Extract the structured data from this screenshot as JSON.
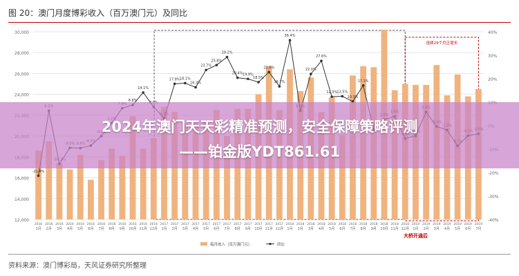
{
  "figure_title": "图 20：澳门月度博彩收入（百万澳门元）及同比",
  "overlay": {
    "line1": "2024年澳门天天彩精准预测，安全保障策略评测",
    "line2": "——铂金版YDT861.61"
  },
  "source": "资料来源：澳门博彩局，天风证券研究所整理",
  "annotation_box_label": "连续29个月正增长",
  "annotation_bottom_label": "大桥开通后",
  "colors": {
    "bar": "#f0b37e",
    "line": "#333333",
    "accent": "#c00000",
    "grid": "#e6e6e6"
  },
  "chart_data": {
    "type": "bar",
    "title": "",
    "ylim": [
      12000,
      30000
    ],
    "y2lim": [
      -40,
      40
    ],
    "yticks": [
      "30,000",
      "28,000",
      "26,000",
      "24,000",
      "22,000",
      "20,000",
      "18,000",
      "16,000",
      "14,000",
      "12,000"
    ],
    "y2ticks": [
      "40%",
      "30%",
      "20%",
      "10%",
      "0%",
      "-10%",
      "-20%",
      "-30%",
      "-40%"
    ],
    "categories": [
      "2016 1月",
      "2016 2月",
      "2016 3月",
      "2016 4月",
      "2016 5月",
      "2016 6月",
      "2016 7月",
      "2016 8月",
      "2016 9月",
      "2016 10月",
      "2016 11月",
      "2016 12月",
      "2017 1月",
      "2017 2月",
      "2017 3月",
      "2017 4月",
      "2017 5月",
      "2017 6月",
      "2017 7月",
      "2017 8月",
      "2017 9月",
      "2017 10月",
      "2017 11月",
      "2017 12月",
      "2018 1月",
      "2018 2月",
      "2018 3月",
      "2018 4月",
      "2018 5月",
      "2018 6月",
      "2018 7月",
      "2018 8月",
      "2018 9月",
      "2018 10月",
      "2018 11月",
      "2018 12月",
      "2019 1月",
      "2019 2月",
      "2019 3月",
      "2019 4月",
      "2019 5月",
      "2019 6月",
      "2019 7月"
    ],
    "xtick_years": [
      "2016",
      "2016",
      "2016",
      "2016",
      "2016",
      "2016",
      "2016",
      "2016",
      "2016",
      "2016",
      "2016",
      "2016",
      "2017",
      "2017",
      "2017",
      "2017",
      "2017",
      "2017",
      "2017",
      "2017",
      "2017",
      "2017",
      "2017",
      "2017",
      "2018",
      "2018",
      "2018",
      "2018",
      "2018",
      "2018",
      "2018",
      "2018",
      "2018",
      "2018",
      "2018",
      "2018",
      "2019",
      "2019",
      "2019",
      "2019",
      "2019",
      "2019",
      "2019"
    ],
    "xtick_months": [
      "1月",
      "2月",
      "3月",
      "4月",
      "5月",
      "6月",
      "7月",
      "8月",
      "9月",
      "10月",
      "11月",
      "12月",
      "1月",
      "2月",
      "3月",
      "4月",
      "5月",
      "6月",
      "7月",
      "8月",
      "9月",
      "10月",
      "11月",
      "12月",
      "1月",
      "2月",
      "3月",
      "4月",
      "5月",
      "6月",
      "7月",
      "8月",
      "9月",
      "10月",
      "11月",
      "12月",
      "1月",
      "2月",
      "3月",
      "4月",
      "5月",
      "6月",
      "7月"
    ],
    "series": [
      {
        "name": "每月收入（百万澳门元）",
        "values": [
          18600,
          19500,
          17400,
          16800,
          18200,
          15800,
          17700,
          18800,
          18100,
          21900,
          18800,
          19800,
          22800,
          22300,
          21200,
          21200,
          21500,
          22500,
          20000,
          22600,
          22600,
          24000,
          26700,
          22500,
          26400,
          24300,
          25600,
          22300,
          23700,
          20100,
          25800,
          26700,
          26600,
          30200,
          24400,
          25000,
          24900,
          24900,
          26800,
          23900,
          25900,
          23800,
          24500
        ]
      },
      {
        "name": "同比",
        "values": [
          -21.4,
          6.3,
          -16.3,
          -9.5,
          -9.6,
          -8.5,
          -4.5,
          1.1,
          7.4,
          8.8,
          14.1,
          8.0,
          3.1,
          17.8,
          18.1,
          16.3,
          23.7,
          25.8,
          29.2,
          20.4,
          19.9,
          18.5,
          22.8,
          16.7,
          36.4,
          6.3,
          22.0,
          27.6,
          12.3,
          12.5,
          10.3,
          17.1,
          -1.8,
          2.6,
          3.9,
          -5.5,
          -4.4,
          5.8,
          -0.4,
          -1.9,
          -8.7,
          -4.3,
          -3.5
        ]
      }
    ],
    "point_labels": [
      "-21.4%",
      "6.3%",
      "-16.3%",
      "-9.5%",
      "-9.6%",
      "-8.5%",
      "-4.5%",
      "1.1%",
      "7.4%",
      "8.8%",
      "14.1%",
      "8.0%",
      "3.1%",
      "17.8%",
      "18.1%",
      "16.3%",
      "23.7%",
      "25.8%",
      "29.2%",
      "20.4%",
      "19.9%",
      "18.5%",
      "22.8%",
      "16.7%",
      "36.4%",
      "6.3%",
      "22.0%",
      "27.6%",
      "12.3%",
      "12.5%",
      "10.3%",
      "17.1%",
      "-1.8%",
      "2.6%",
      "3.9%",
      "-5.5%",
      "-4.4%",
      "5.8%",
      "-0.4%",
      "-1.9%",
      "-8.7%",
      "-4.3%",
      "-3.5%"
    ],
    "legend": [
      "每月收入（百万澳门元）",
      "同比"
    ],
    "legend_position": "bottom",
    "grid": true
  }
}
